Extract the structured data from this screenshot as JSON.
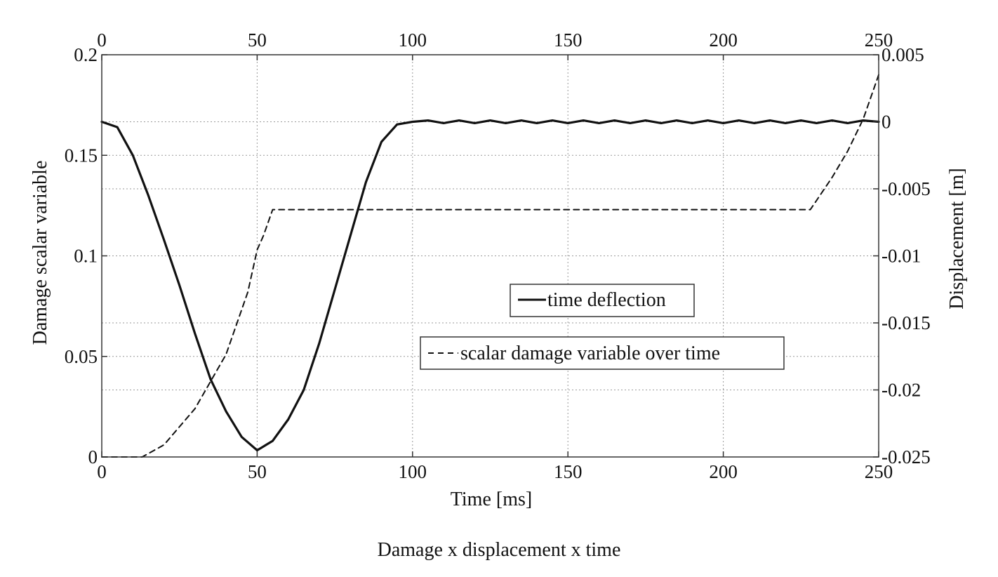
{
  "chart_data": {
    "type": "line",
    "caption": "Damage x displacement x time",
    "xlabel": "Time [ms]",
    "ylabel": "Damage scalar variable",
    "y2label": "Displacement [m]",
    "xlim": [
      0,
      250
    ],
    "ylim": [
      0,
      0.2
    ],
    "y2lim": [
      -0.025,
      0.005
    ],
    "xticks": [
      0,
      50,
      100,
      150,
      200,
      250
    ],
    "xtick_labels": [
      "0",
      "50",
      "100",
      "150",
      "200",
      "250"
    ],
    "top_xtick_labels": [
      "0",
      "50",
      "100",
      "150",
      "200",
      "250"
    ],
    "yticks": [
      0,
      0.05,
      0.1,
      0.15,
      0.2
    ],
    "ytick_labels": [
      "0",
      "0.05",
      "0.1",
      "0.15",
      "0.2"
    ],
    "y2ticks": [
      -0.025,
      -0.02,
      -0.015,
      -0.01,
      -0.005,
      0,
      0.005
    ],
    "y2tick_labels": [
      "-0.025",
      "-0.02",
      "-0.015",
      "-0.01",
      "-0.005",
      "0",
      "0.005"
    ],
    "grid": true,
    "grid_style": "dotted",
    "series": [
      {
        "name": "time deflection",
        "axis": "right",
        "style": "solid",
        "color": "#111111",
        "x": [
          0,
          5,
          10,
          15,
          20,
          25,
          30,
          35,
          40,
          45,
          50,
          55,
          60,
          65,
          70,
          75,
          80,
          85,
          90,
          95,
          100,
          105,
          110,
          115,
          120,
          125,
          130,
          135,
          140,
          145,
          150,
          155,
          160,
          165,
          170,
          175,
          180,
          185,
          190,
          195,
          200,
          205,
          210,
          215,
          220,
          225,
          230,
          235,
          240,
          245,
          250
        ],
        "y": [
          0,
          -0.0004,
          -0.0025,
          -0.0055,
          -0.0088,
          -0.0122,
          -0.0158,
          -0.0192,
          -0.0216,
          -0.0235,
          -0.0245,
          -0.0238,
          -0.0222,
          -0.02,
          -0.0165,
          -0.0125,
          -0.0085,
          -0.0045,
          -0.0015,
          -0.0002,
          0.0,
          0.0001,
          -0.0001,
          0.0001,
          -0.0001,
          0.0001,
          -0.0001,
          0.0001,
          -0.0001,
          0.0001,
          -0.0001,
          0.0001,
          -0.0001,
          0.0001,
          -0.0001,
          0.0001,
          -0.0001,
          0.0001,
          -0.0001,
          0.0001,
          -0.0001,
          0.0001,
          -0.0001,
          0.0001,
          -0.0001,
          0.0001,
          -0.0001,
          0.0001,
          -0.0001,
          0.0001,
          0.0
        ]
      },
      {
        "name": "scalar damage variable over time",
        "axis": "left",
        "style": "dashed",
        "color": "#111111",
        "x": [
          0,
          13,
          20,
          30,
          40,
          47,
          50,
          52,
          55,
          100,
          150,
          200,
          228,
          235,
          240,
          245,
          250
        ],
        "y": [
          0,
          0,
          0.006,
          0.024,
          0.051,
          0.082,
          0.103,
          0.11,
          0.123,
          0.123,
          0.123,
          0.123,
          0.123,
          0.139,
          0.152,
          0.168,
          0.19
        ]
      }
    ]
  }
}
